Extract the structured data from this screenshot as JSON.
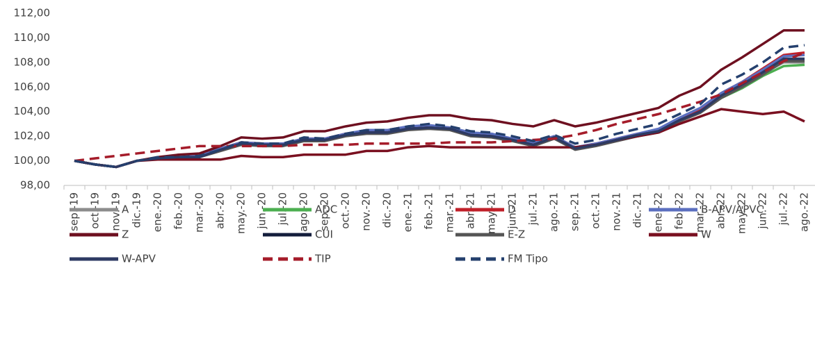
{
  "chart_data": {
    "type": "line",
    "categories": [
      "sep.-19",
      "oct.-19",
      "nov.-19",
      "dic.-19",
      "ene.-20",
      "feb.-20",
      "mar.-20",
      "abr.-20",
      "may.-20",
      "jun.-20",
      "jul.-20",
      "ago.-20",
      "sep.-20",
      "oct.-20",
      "nov.-20",
      "dic.-20",
      "ene.-21",
      "feb.-21",
      "mar.-21",
      "abr.-21",
      "may.-21",
      "jun.-21",
      "jul.-21",
      "ago.-21",
      "sep.-21",
      "oct.-21",
      "nov.-21",
      "dic.-21",
      "ene.-22",
      "feb.-22",
      "mar.-22",
      "abr.-22",
      "may.-22",
      "jun.-22",
      "jul.-22",
      "ago.-22"
    ],
    "ylim": [
      98,
      112
    ],
    "yticks": [
      {
        "value": 98,
        "label": "98,00"
      },
      {
        "value": 100,
        "label": "100,00"
      },
      {
        "value": 102,
        "label": "102,00"
      },
      {
        "value": 104,
        "label": "104,00"
      },
      {
        "value": 106,
        "label": "106,00"
      },
      {
        "value": 108,
        "label": "108,00"
      },
      {
        "value": 110,
        "label": "110,00"
      },
      {
        "value": 112,
        "label": "112,00"
      }
    ],
    "series": [
      {
        "name": "A",
        "color": "#8c8c8c",
        "dashed": false,
        "values": [
          100,
          99.7,
          99.5,
          100,
          100.2,
          100.3,
          100.3,
          100.9,
          101.4,
          101.3,
          101.3,
          101.7,
          101.7,
          102.1,
          102.3,
          102.3,
          102.6,
          102.7,
          102.6,
          102.1,
          102,
          101.7,
          101.3,
          101.9,
          101,
          101.3,
          101.7,
          102.1,
          102.4,
          103.3,
          104,
          105.2,
          106.1,
          107.1,
          108,
          108
        ]
      },
      {
        "name": "ADC",
        "color": "#4caf50",
        "dashed": false,
        "values": [
          100,
          99.7,
          99.5,
          100,
          100.2,
          100.3,
          100.3,
          100.9,
          101.4,
          101.3,
          101.3,
          101.7,
          101.7,
          102.1,
          102.3,
          102.3,
          102.6,
          102.7,
          102.6,
          102.1,
          102,
          101.7,
          101.3,
          101.9,
          101,
          101.3,
          101.7,
          102.1,
          102.4,
          103.3,
          104,
          105.1,
          105.9,
          106.9,
          107.7,
          107.8
        ]
      },
      {
        "name": "D",
        "color": "#c0202a",
        "dashed": false,
        "values": [
          100,
          99.7,
          99.5,
          100,
          100.2,
          100.3,
          100.4,
          101,
          101.5,
          101.4,
          101.4,
          101.8,
          101.8,
          102.2,
          102.4,
          102.4,
          102.7,
          102.8,
          102.7,
          102.2,
          102.1,
          101.8,
          101.4,
          102,
          101.1,
          101.4,
          101.8,
          102.2,
          102.5,
          103.4,
          104.2,
          105.5,
          106.4,
          107.5,
          108.6,
          108.8
        ]
      },
      {
        "name": "B-APV/APVC",
        "color": "#5b6fbf",
        "dashed": false,
        "values": [
          100,
          99.7,
          99.5,
          100,
          100.2,
          100.3,
          100.4,
          101,
          101.5,
          101.4,
          101.4,
          101.8,
          101.8,
          102.2,
          102.5,
          102.5,
          102.8,
          102.9,
          102.7,
          102.3,
          102.2,
          101.8,
          101.5,
          102,
          101.1,
          101.4,
          101.8,
          102.2,
          102.6,
          103.5,
          104.3,
          105.5,
          106.4,
          107.4,
          108.5,
          108.6
        ]
      },
      {
        "name": "Z",
        "color": "#6e1020",
        "dashed": false,
        "values": [
          100,
          99.7,
          99.5,
          100,
          100.3,
          100.5,
          100.6,
          101.2,
          101.9,
          101.8,
          101.9,
          102.4,
          102.4,
          102.8,
          103.1,
          103.2,
          103.5,
          103.7,
          103.7,
          103.4,
          103.3,
          103,
          102.8,
          103.3,
          102.8,
          103.1,
          103.5,
          103.9,
          104.3,
          105.3,
          106,
          107.4,
          108.4,
          109.5,
          110.6,
          110.6
        ]
      },
      {
        "name": "CUI",
        "color": "#141e3c",
        "dashed": false,
        "values": [
          100,
          99.7,
          99.5,
          100,
          100.2,
          100.3,
          100.3,
          100.9,
          101.4,
          101.3,
          101.3,
          101.7,
          101.7,
          102.1,
          102.3,
          102.3,
          102.6,
          102.7,
          102.6,
          102.1,
          102,
          101.7,
          101.3,
          101.9,
          101,
          101.3,
          101.7,
          102.1,
          102.4,
          103.3,
          104,
          105.2,
          106.1,
          107.1,
          108.2,
          108.2
        ]
      },
      {
        "name": "E-Z",
        "color": "#555555",
        "dashed": false,
        "values": [
          100,
          99.7,
          99.5,
          100,
          100.2,
          100.2,
          100.3,
          100.8,
          101.3,
          101.2,
          101.2,
          101.6,
          101.6,
          102,
          102.2,
          102.2,
          102.5,
          102.6,
          102.5,
          102,
          101.9,
          101.6,
          101.2,
          101.8,
          100.9,
          101.2,
          101.6,
          102,
          102.3,
          103.2,
          103.9,
          105.1,
          106,
          107,
          108.1,
          108.1
        ]
      },
      {
        "name": "W",
        "color": "#7a1020",
        "dashed": false,
        "values": [
          100,
          99.7,
          99.5,
          100,
          100.1,
          100.1,
          100.1,
          100.1,
          100.4,
          100.3,
          100.3,
          100.5,
          100.5,
          100.5,
          100.8,
          100.8,
          101.1,
          101.2,
          101.1,
          101.1,
          101.1,
          101.1,
          101.1,
          101.1,
          101.1,
          101.3,
          101.7,
          102,
          102.3,
          103,
          103.6,
          104.2,
          104,
          103.8,
          104,
          103.2
        ]
      },
      {
        "name": "W-APV",
        "color": "#2d3a63",
        "dashed": false,
        "values": [
          100,
          99.7,
          99.5,
          100,
          100.2,
          100.3,
          100.3,
          100.9,
          101.4,
          101.3,
          101.3,
          101.7,
          101.7,
          102.1,
          102.3,
          102.3,
          102.6,
          102.7,
          102.6,
          102.1,
          102,
          101.7,
          101.3,
          101.9,
          101,
          101.3,
          101.7,
          102.1,
          102.4,
          103.3,
          104,
          105.3,
          106.2,
          107.2,
          108.3,
          108.3
        ]
      },
      {
        "name": "TIP",
        "color": "#a51c2a",
        "dashed": true,
        "values": [
          100,
          100.2,
          100.4,
          100.6,
          100.8,
          101,
          101.2,
          101.2,
          101.2,
          101.2,
          101.2,
          101.3,
          101.3,
          101.3,
          101.4,
          101.4,
          101.4,
          101.4,
          101.5,
          101.5,
          101.5,
          101.6,
          101.7,
          101.8,
          102.1,
          102.5,
          103,
          103.4,
          103.8,
          104.3,
          104.8,
          105.4,
          106.3,
          107.2,
          108.1,
          108.8
        ]
      },
      {
        "name": "FM Tipo",
        "color": "#25406e",
        "dashed": true,
        "values": [
          100,
          99.7,
          99.5,
          100,
          100.3,
          100.3,
          100.4,
          100.9,
          101.5,
          101.4,
          101.4,
          101.9,
          101.8,
          102.2,
          102.5,
          102.5,
          102.8,
          103,
          102.8,
          102.4,
          102.3,
          102,
          101.6,
          102.1,
          101.4,
          101.7,
          102.2,
          102.6,
          103,
          103.8,
          104.6,
          106.2,
          107,
          108,
          109.2,
          109.4
        ]
      }
    ]
  }
}
